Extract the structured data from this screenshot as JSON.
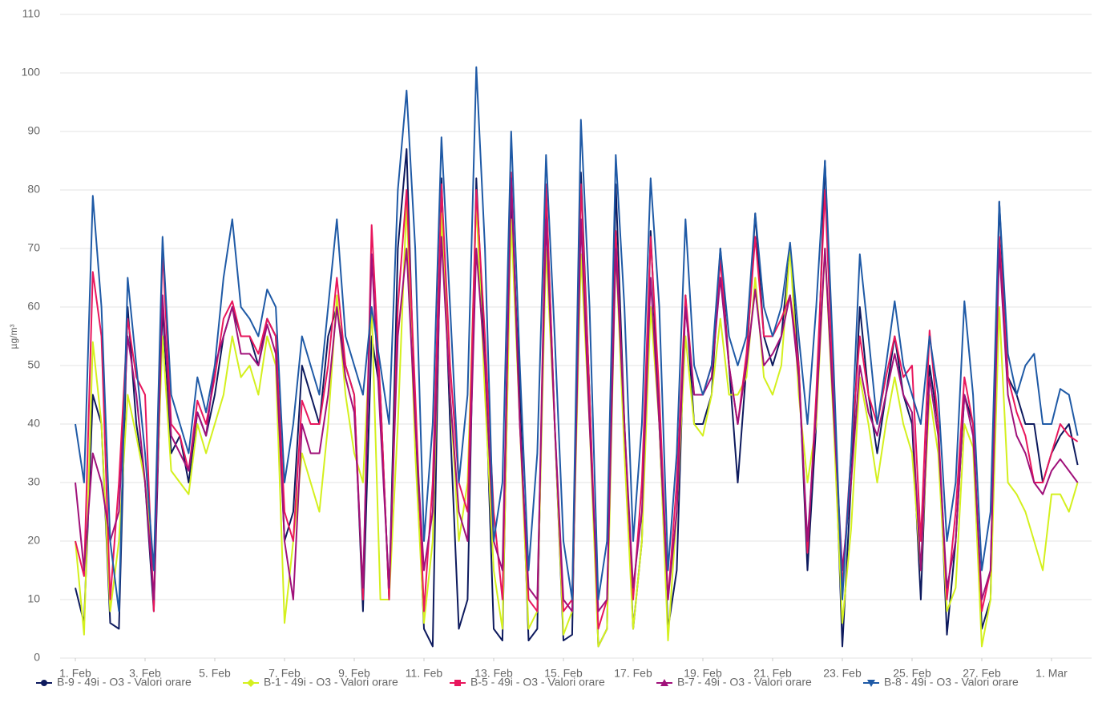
{
  "chart_data": {
    "type": "line",
    "y_label": "µg/m³",
    "xlim": [
      0,
      29
    ],
    "ylim": [
      0,
      110
    ],
    "xticks": [
      {
        "value": 0,
        "label": "1. Feb"
      },
      {
        "value": 2,
        "label": "3. Feb"
      },
      {
        "value": 4,
        "label": "5. Feb"
      },
      {
        "value": 6,
        "label": "7. Feb"
      },
      {
        "value": 8,
        "label": "9. Feb"
      },
      {
        "value": 10,
        "label": "11. Feb"
      },
      {
        "value": 12,
        "label": "13. Feb"
      },
      {
        "value": 14,
        "label": "15. Feb"
      },
      {
        "value": 16,
        "label": "17. Feb"
      },
      {
        "value": 18,
        "label": "19. Feb"
      },
      {
        "value": 20,
        "label": "21. Feb"
      },
      {
        "value": 22,
        "label": "23. Feb"
      },
      {
        "value": 24,
        "label": "25. Feb"
      },
      {
        "value": 26,
        "label": "27. Feb"
      },
      {
        "value": 28,
        "label": "1. Mar"
      }
    ],
    "yticks": [
      0,
      10,
      20,
      30,
      40,
      50,
      60,
      70,
      80,
      90,
      100,
      110
    ],
    "grid": true,
    "legend": "bottom",
    "x": [
      0,
      0.25,
      0.5,
      0.75,
      1,
      1.25,
      1.5,
      1.75,
      2,
      2.25,
      2.5,
      2.75,
      3,
      3.25,
      3.5,
      3.75,
      4,
      4.25,
      4.5,
      4.75,
      5,
      5.25,
      5.5,
      5.75,
      6,
      6.25,
      6.5,
      6.75,
      7,
      7.25,
      7.5,
      7.75,
      8,
      8.25,
      8.5,
      8.75,
      9,
      9.25,
      9.5,
      9.75,
      10,
      10.25,
      10.5,
      10.75,
      11,
      11.25,
      11.5,
      11.75,
      12,
      12.25,
      12.5,
      12.75,
      13,
      13.25,
      13.5,
      13.75,
      14,
      14.25,
      14.5,
      14.75,
      15,
      15.25,
      15.5,
      15.75,
      16,
      16.25,
      16.5,
      16.75,
      17,
      17.25,
      17.5,
      17.75,
      18,
      18.25,
      18.5,
      18.75,
      19,
      19.25,
      19.5,
      19.75,
      20,
      20.25,
      20.5,
      20.75,
      21,
      21.25,
      21.5,
      21.75,
      22,
      22.25,
      22.5,
      22.75,
      23,
      23.25,
      23.5,
      23.75,
      24,
      24.25,
      24.5,
      24.75,
      25,
      25.25,
      25.5,
      25.75,
      26,
      26.25,
      26.5,
      26.75,
      27,
      27.25,
      27.5,
      27.75,
      28,
      28.25,
      28.5,
      28.75
    ],
    "series": [
      {
        "name": "B-9 - 49i - O3 - Valori orare",
        "color": "#0d1a5e",
        "marker": "circle",
        "values": [
          12,
          6,
          45,
          40,
          6,
          5,
          60,
          40,
          30,
          8,
          60,
          35,
          38,
          30,
          42,
          38,
          45,
          55,
          60,
          55,
          55,
          50,
          58,
          55,
          20,
          25,
          50,
          45,
          40,
          55,
          60,
          50,
          45,
          8,
          55,
          45,
          10,
          70,
          87,
          40,
          5,
          2,
          82,
          40,
          5,
          10,
          82,
          50,
          5,
          3,
          79,
          45,
          3,
          5,
          80,
          40,
          3,
          4,
          83,
          45,
          2,
          5,
          81,
          40,
          5,
          20,
          73,
          40,
          5,
          15,
          62,
          40,
          40,
          45,
          70,
          50,
          30,
          50,
          76,
          55,
          50,
          55,
          70,
          50,
          15,
          40,
          85,
          45,
          2,
          30,
          60,
          45,
          35,
          45,
          55,
          45,
          40,
          10,
          50,
          40,
          4,
          20,
          45,
          40,
          5,
          10,
          78,
          48,
          45,
          40,
          40,
          30,
          35,
          38,
          40,
          33
        ]
      },
      {
        "name": "B-1 - 49i - O3 - Valori orare",
        "color": "#d4f01e",
        "marker": "diamond",
        "values": [
          20,
          4,
          54,
          40,
          8,
          20,
          45,
          38,
          30,
          15,
          55,
          32,
          30,
          28,
          40,
          35,
          40,
          45,
          55,
          48,
          50,
          45,
          55,
          50,
          6,
          20,
          35,
          30,
          25,
          40,
          62,
          45,
          35,
          30,
          60,
          10,
          10,
          40,
          78,
          35,
          6,
          20,
          76,
          45,
          20,
          30,
          78,
          45,
          15,
          5,
          75,
          40,
          5,
          8,
          70,
          40,
          4,
          8,
          69,
          40,
          2,
          5,
          70,
          35,
          5,
          20,
          60,
          40,
          3,
          25,
          55,
          40,
          38,
          45,
          58,
          45,
          45,
          48,
          65,
          48,
          45,
          50,
          70,
          45,
          30,
          40,
          70,
          40,
          6,
          22,
          48,
          40,
          30,
          40,
          48,
          40,
          35,
          15,
          45,
          35,
          8,
          12,
          40,
          36,
          2,
          10,
          60,
          30,
          28,
          25,
          20,
          15,
          28,
          28,
          25,
          30
        ]
      },
      {
        "name": "B-5 - 49i - O3 - Valori orare",
        "color": "#e8175d",
        "marker": "square",
        "values": [
          20,
          14,
          66,
          55,
          10,
          30,
          58,
          48,
          45,
          8,
          70,
          40,
          38,
          32,
          44,
          40,
          48,
          58,
          61,
          55,
          55,
          52,
          58,
          55,
          25,
          20,
          44,
          40,
          40,
          50,
          65,
          50,
          45,
          10,
          74,
          45,
          10,
          60,
          80,
          45,
          8,
          30,
          81,
          50,
          30,
          25,
          80,
          55,
          25,
          10,
          83,
          40,
          10,
          8,
          81,
          40,
          8,
          10,
          81,
          45,
          5,
          10,
          73,
          40,
          10,
          30,
          72,
          45,
          10,
          30,
          62,
          45,
          45,
          50,
          68,
          50,
          40,
          52,
          72,
          55,
          55,
          58,
          62,
          50,
          18,
          45,
          80,
          45,
          12,
          35,
          55,
          45,
          40,
          48,
          55,
          48,
          50,
          20,
          56,
          40,
          10,
          25,
          48,
          40,
          8,
          15,
          72,
          48,
          42,
          38,
          30,
          30,
          35,
          40,
          38,
          37
        ]
      },
      {
        "name": "B-7 - 49i - O3 - Valori orare",
        "color": "#a0117a",
        "marker": "triangle-up",
        "values": [
          30,
          15,
          35,
          30,
          20,
          25,
          55,
          45,
          30,
          10,
          62,
          38,
          35,
          32,
          42,
          38,
          50,
          55,
          60,
          52,
          52,
          50,
          57,
          52,
          20,
          10,
          40,
          35,
          35,
          45,
          60,
          48,
          42,
          12,
          69,
          40,
          12,
          55,
          70,
          40,
          15,
          25,
          72,
          45,
          25,
          20,
          70,
          50,
          20,
          15,
          82,
          40,
          12,
          10,
          75,
          40,
          10,
          8,
          75,
          40,
          8,
          10,
          70,
          40,
          12,
          25,
          65,
          40,
          10,
          25,
          60,
          45,
          45,
          48,
          65,
          50,
          40,
          50,
          63,
          50,
          52,
          55,
          62,
          48,
          20,
          42,
          70,
          42,
          15,
          30,
          50,
          42,
          38,
          45,
          52,
          45,
          42,
          15,
          48,
          38,
          12,
          20,
          45,
          38,
          10,
          15,
          70,
          45,
          38,
          35,
          30,
          28,
          32,
          34,
          32,
          30
        ]
      },
      {
        "name": "B-8 - 49i - O3 - Valori orare",
        "color": "#1f5aa6",
        "marker": "triangle-down",
        "values": [
          40,
          30,
          79,
          60,
          20,
          8,
          65,
          50,
          35,
          15,
          72,
          45,
          40,
          35,
          48,
          42,
          50,
          65,
          75,
          60,
          58,
          55,
          63,
          60,
          30,
          40,
          55,
          50,
          45,
          60,
          75,
          55,
          50,
          45,
          60,
          50,
          40,
          80,
          97,
          70,
          20,
          40,
          89,
          60,
          30,
          45,
          101,
          70,
          20,
          30,
          90,
          50,
          15,
          35,
          86,
          55,
          20,
          10,
          92,
          60,
          10,
          20,
          86,
          60,
          20,
          40,
          82,
          60,
          15,
          35,
          75,
          50,
          45,
          50,
          70,
          55,
          50,
          55,
          76,
          60,
          55,
          60,
          71,
          55,
          40,
          60,
          85,
          50,
          10,
          35,
          69,
          55,
          40,
          50,
          61,
          50,
          45,
          40,
          55,
          45,
          20,
          30,
          61,
          45,
          15,
          25,
          78,
          52,
          45,
          50,
          52,
          40,
          40,
          46,
          45,
          38
        ]
      }
    ]
  }
}
